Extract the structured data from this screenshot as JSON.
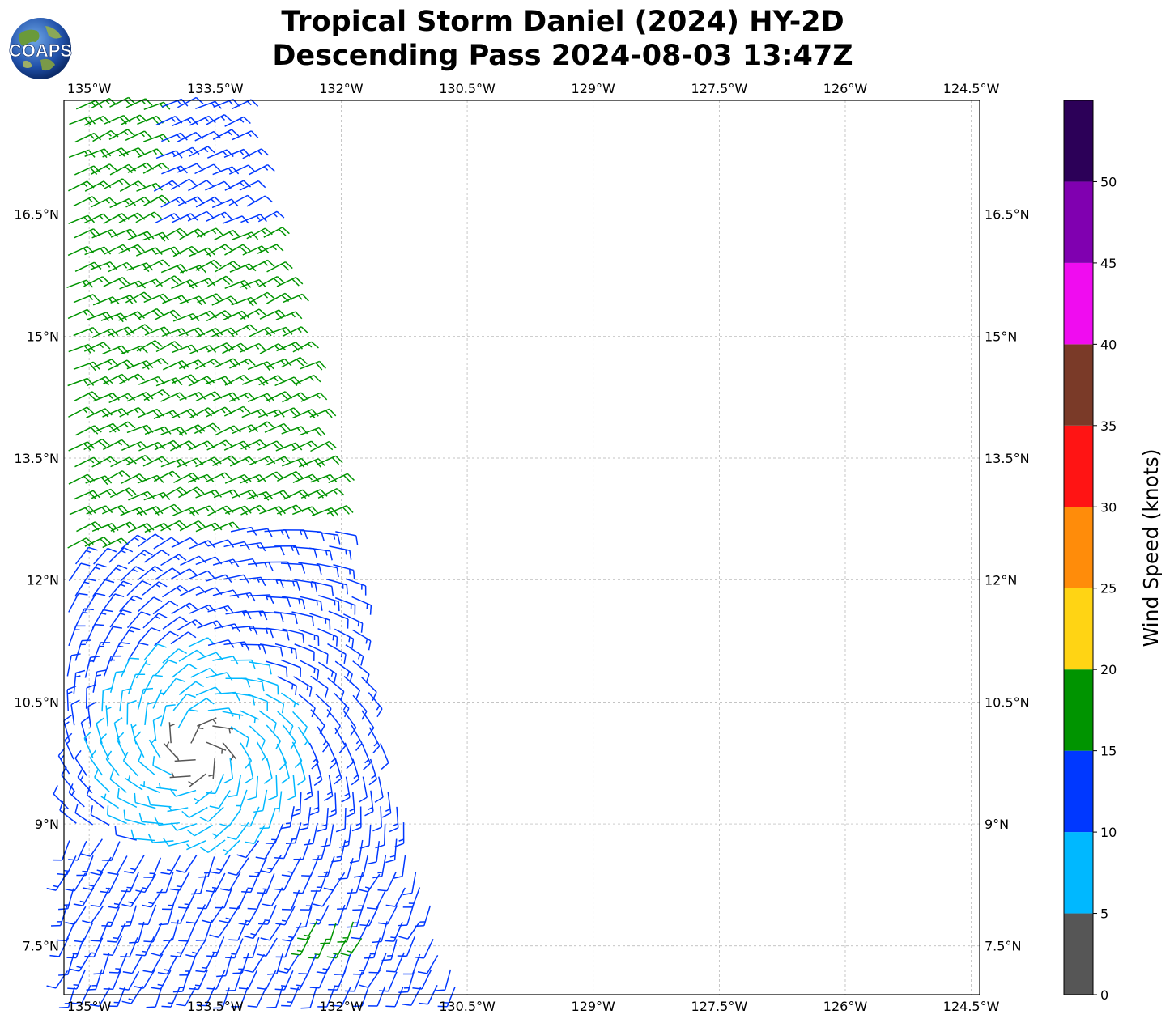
{
  "title": {
    "line1": "Tropical Storm Daniel (2024) HY-2D",
    "line2": "Descending Pass 2024-08-03 13:47Z"
  },
  "logo": {
    "text": "COAPS",
    "icon": "globe-logo"
  },
  "map": {
    "lon_range": [
      -135.3,
      -124.4
    ],
    "lat_range": [
      6.9,
      17.9
    ],
    "grid": true,
    "lon_ticks": [
      {
        "value": -135.0,
        "label": "135°W"
      },
      {
        "value": -133.5,
        "label": "133.5°W"
      },
      {
        "value": -132.0,
        "label": "132°W"
      },
      {
        "value": -130.5,
        "label": "130.5°W"
      },
      {
        "value": -129.0,
        "label": "129°W"
      },
      {
        "value": -127.5,
        "label": "127.5°W"
      },
      {
        "value": -126.0,
        "label": "126°W"
      },
      {
        "value": -124.5,
        "label": "124.5°W"
      }
    ],
    "lat_ticks": [
      {
        "value": 16.5,
        "label": "16.5°N"
      },
      {
        "value": 15.0,
        "label": "15°N"
      },
      {
        "value": 13.5,
        "label": "13.5°N"
      },
      {
        "value": 12.0,
        "label": "12°N"
      },
      {
        "value": 10.5,
        "label": "10.5°N"
      },
      {
        "value": 9.0,
        "label": "9°N"
      },
      {
        "value": 7.5,
        "label": "7.5°N"
      }
    ],
    "swath": {
      "west_lon": -135.3,
      "east_edge": [
        [
          17.9,
          -133.3
        ],
        [
          12.6,
          -132.0
        ],
        [
          10.2,
          -131.6
        ],
        [
          7.0,
          -130.6
        ]
      ],
      "vortex_center": [
        9.9,
        -133.7
      ]
    },
    "wind_regions": [
      {
        "lat_range": [
          12.2,
          17.9
        ],
        "speed_knots": 17,
        "direction": "from NE"
      },
      {
        "lat_range": [
          16.5,
          17.9
        ],
        "speed_knots": 12,
        "direction": "from NE",
        "note_lon_min": -134.2
      },
      {
        "lat_range": [
          9.3,
          12.8
        ],
        "speed_knots": 12,
        "direction": "cyclonic"
      },
      {
        "lat_range": [
          9.5,
          11.2
        ],
        "speed_knots": 8,
        "direction": "cyclonic"
      },
      {
        "lat_range": [
          6.9,
          9.3
        ],
        "speed_knots": 12,
        "direction": "from S"
      }
    ]
  },
  "colorbar": {
    "label": "Wind Speed (knots)",
    "ticks": [
      "0",
      "5",
      "10",
      "15",
      "20",
      "25",
      "30",
      "35",
      "40",
      "45",
      "50"
    ],
    "bins": [
      {
        "min": 0,
        "max": 5,
        "color": "#565656"
      },
      {
        "min": 5,
        "max": 10,
        "color": "#00b8ff"
      },
      {
        "min": 10,
        "max": 15,
        "color": "#0038ff"
      },
      {
        "min": 15,
        "max": 20,
        "color": "#009400"
      },
      {
        "min": 20,
        "max": 25,
        "color": "#ffd414"
      },
      {
        "min": 25,
        "max": 30,
        "color": "#ff8c0a"
      },
      {
        "min": 30,
        "max": 35,
        "color": "#ff1414"
      },
      {
        "min": 35,
        "max": 40,
        "color": "#7a3a28"
      },
      {
        "min": 40,
        "max": 45,
        "color": "#f00cf0"
      },
      {
        "min": 45,
        "max": 50,
        "color": "#8000b0"
      },
      {
        "min": 50,
        "max": 55,
        "color": "#2c0058"
      }
    ]
  }
}
